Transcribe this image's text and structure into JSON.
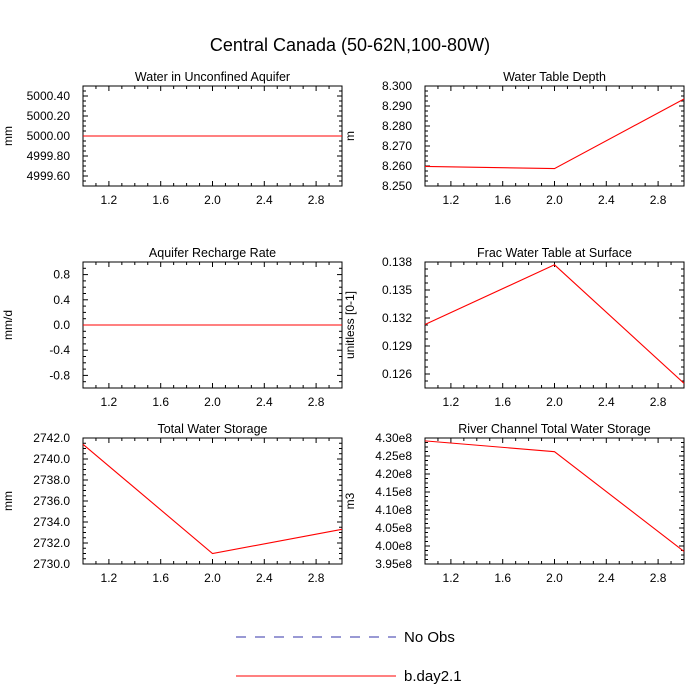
{
  "title": "Central Canada (50-62N,100-80W)",
  "chart_data": [
    {
      "type": "line",
      "title": "Water in Unconfined Aquifer",
      "ylabel": "mm",
      "xlim": [
        1.0,
        3.0
      ],
      "ylim": [
        4999.5,
        5000.5
      ],
      "xticks": [
        1.2,
        1.6,
        2.0,
        2.4,
        2.8
      ],
      "xtick_labels": [
        "1.2",
        "1.6",
        "2.0",
        "2.4",
        "2.8"
      ],
      "yticks": [
        4999.6,
        4999.8,
        5000.0,
        5000.2,
        5000.4
      ],
      "ytick_labels": [
        "4999.60",
        "4999.80",
        "5000.00",
        "5000.20",
        "5000.40"
      ],
      "x": [
        1.0,
        2.0,
        3.0
      ],
      "series": [
        {
          "name": "b.day2.1",
          "color": "#ff0000",
          "values": [
            5000.0,
            5000.0,
            5000.0
          ]
        }
      ]
    },
    {
      "type": "line",
      "title": "Water Table Depth",
      "ylabel": "m",
      "xlim": [
        1.0,
        3.0
      ],
      "ylim": [
        8.25,
        8.3
      ],
      "xticks": [
        1.2,
        1.6,
        2.0,
        2.4,
        2.8
      ],
      "xtick_labels": [
        "1.2",
        "1.6",
        "2.0",
        "2.4",
        "2.8"
      ],
      "yticks": [
        8.25,
        8.26,
        8.27,
        8.28,
        8.29,
        8.3
      ],
      "ytick_labels": [
        "8.250",
        "8.260",
        "8.270",
        "8.280",
        "8.290",
        "8.300"
      ],
      "x": [
        1.0,
        2.0,
        3.0
      ],
      "series": [
        {
          "name": "b.day2.1",
          "color": "#ff0000",
          "values": [
            8.2598,
            8.2587,
            8.2935
          ]
        }
      ]
    },
    {
      "type": "line",
      "title": "Aquifer Recharge Rate",
      "ylabel": "mm/d",
      "xlim": [
        1.0,
        3.0
      ],
      "ylim": [
        -1.0,
        1.0
      ],
      "xticks": [
        1.2,
        1.6,
        2.0,
        2.4,
        2.8
      ],
      "xtick_labels": [
        "1.2",
        "1.6",
        "2.0",
        "2.4",
        "2.8"
      ],
      "yticks": [
        -0.8,
        -0.4,
        0.0,
        0.4,
        0.8
      ],
      "ytick_labels": [
        "-0.8",
        "-0.4",
        "0.0",
        "0.4",
        "0.8"
      ],
      "x": [
        1.0,
        2.0,
        3.0
      ],
      "series": [
        {
          "name": "b.day2.1",
          "color": "#ff0000",
          "values": [
            0.0,
            0.0,
            0.0
          ]
        }
      ]
    },
    {
      "type": "line",
      "title": "Frac Water Table at Surface",
      "ylabel": "unitless [0-1]",
      "xlim": [
        1.0,
        3.0
      ],
      "ylim": [
        0.1245,
        0.138
      ],
      "xticks": [
        1.2,
        1.6,
        2.0,
        2.4,
        2.8
      ],
      "xtick_labels": [
        "1.2",
        "1.6",
        "2.0",
        "2.4",
        "2.8"
      ],
      "yticks": [
        0.126,
        0.129,
        0.132,
        0.135,
        0.138
      ],
      "ytick_labels": [
        "0.126",
        "0.129",
        "0.132",
        "0.135",
        "0.138"
      ],
      "x": [
        1.0,
        2.0,
        3.0
      ],
      "series": [
        {
          "name": "b.day2.1",
          "color": "#ff0000",
          "values": [
            0.1313,
            0.1377,
            0.125
          ]
        }
      ]
    },
    {
      "type": "line",
      "title": "Total Water Storage",
      "ylabel": "mm",
      "xlim": [
        1.0,
        3.0
      ],
      "ylim": [
        2730.0,
        2742.0
      ],
      "xticks": [
        1.2,
        1.6,
        2.0,
        2.4,
        2.8
      ],
      "xtick_labels": [
        "1.2",
        "1.6",
        "2.0",
        "2.4",
        "2.8"
      ],
      "yticks": [
        2730,
        2732,
        2734,
        2736,
        2738,
        2740,
        2742
      ],
      "ytick_labels": [
        "2730.0",
        "2732.0",
        "2734.0",
        "2736.0",
        "2738.0",
        "2740.0",
        "2742.0"
      ],
      "x": [
        1.0,
        2.0,
        3.0
      ],
      "series": [
        {
          "name": "b.day2.1",
          "color": "#ff0000",
          "values": [
            2741.4,
            2731.0,
            2733.3
          ]
        }
      ]
    },
    {
      "type": "line",
      "title": "River Channel Total Water Storage",
      "ylabel": "m3",
      "xlim": [
        1.0,
        3.0
      ],
      "ylim": [
        395000000,
        430000000
      ],
      "xticks": [
        1.2,
        1.6,
        2.0,
        2.4,
        2.8
      ],
      "xtick_labels": [
        "1.2",
        "1.6",
        "2.0",
        "2.4",
        "2.8"
      ],
      "yticks": [
        395000000,
        400000000,
        405000000,
        410000000,
        415000000,
        420000000,
        425000000,
        430000000
      ],
      "ytick_labels": [
        "3.95e8",
        "4.00e8",
        "4.05e8",
        "4.10e8",
        "4.15e8",
        "4.20e8",
        "4.25e8",
        "4.30e8"
      ],
      "x": [
        1.0,
        2.0,
        3.0
      ],
      "series": [
        {
          "name": "b.day2.1",
          "color": "#ff0000",
          "values": [
            429200000,
            426200000,
            398500000
          ]
        }
      ]
    }
  ],
  "legend": [
    {
      "label": "No Obs",
      "color": "#3333aa",
      "style": "dashed"
    },
    {
      "label": "b.day2.1",
      "color": "#ff0000",
      "style": "solid"
    }
  ]
}
